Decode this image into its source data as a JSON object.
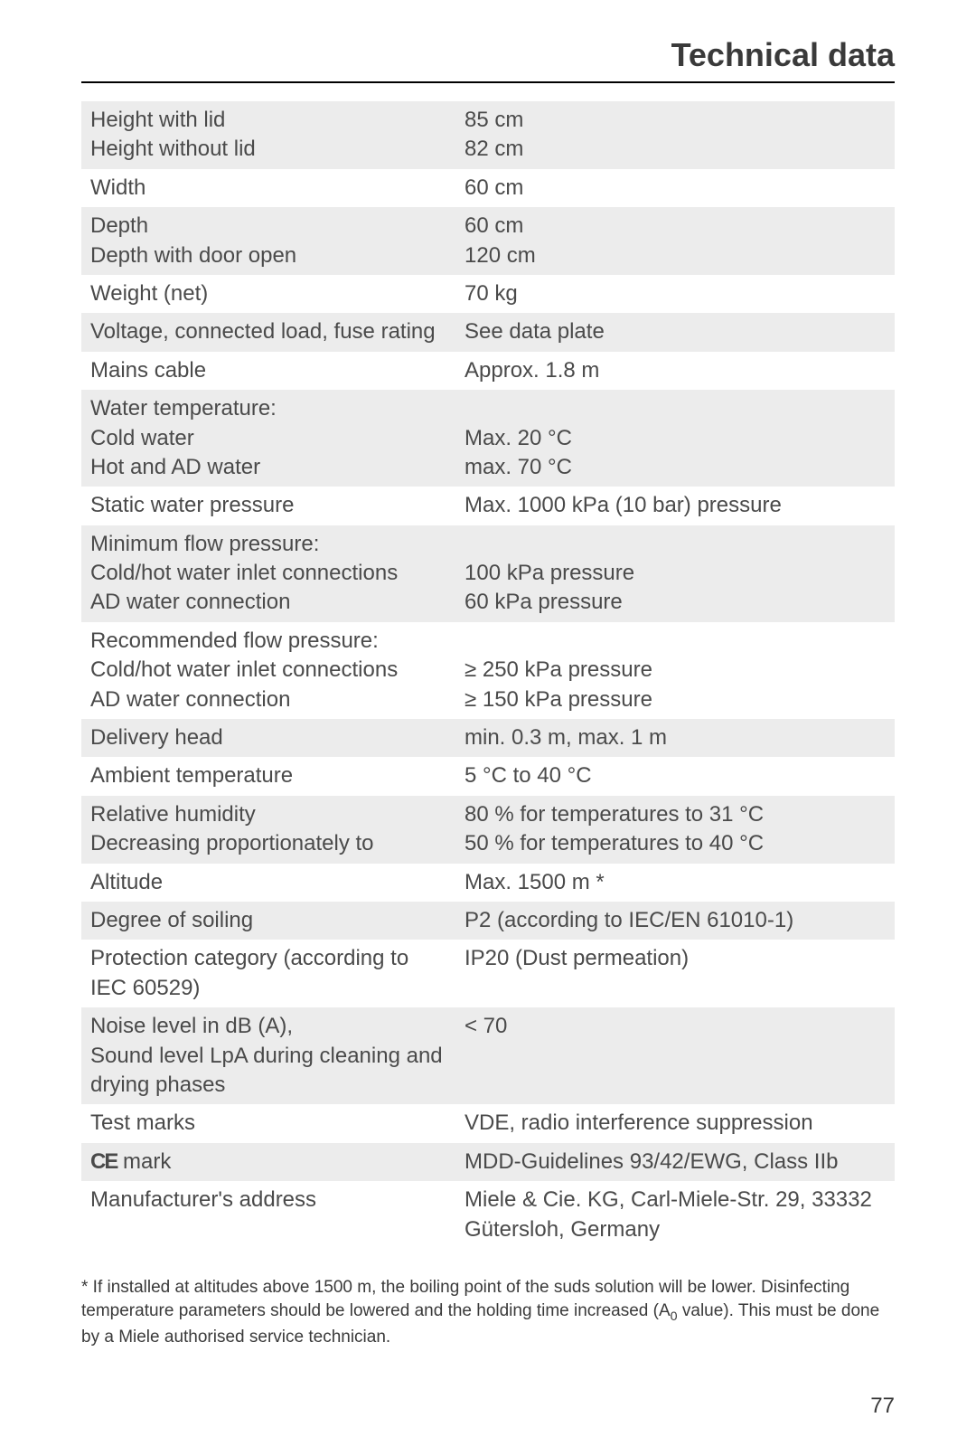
{
  "title": "Technical data",
  "rows": [
    {
      "label": "Height with lid\nHeight without lid",
      "value": "85 cm\n82 cm",
      "shaded": true
    },
    {
      "label": "Width",
      "value": "60 cm",
      "shaded": false
    },
    {
      "label": "Depth\nDepth with door open",
      "value": "60 cm\n120 cm",
      "shaded": true
    },
    {
      "label": "Weight (net)",
      "value": "70 kg",
      "shaded": false
    },
    {
      "label": "Voltage, connected load, fuse rating",
      "value": "See data plate",
      "shaded": true
    },
    {
      "label": "Mains cable",
      "value": "Approx. 1.8 m",
      "shaded": false
    },
    {
      "label": "Water temperature:\nCold water\nHot and AD water",
      "value": "\nMax. 20 °C\nmax. 70 °C",
      "shaded": true
    },
    {
      "label": "Static water pressure",
      "value": "Max. 1000 kPa (10 bar) pressure",
      "shaded": false
    },
    {
      "label": "Minimum flow pressure:\nCold/hot water inlet connections\nAD water connection",
      "value": "\n100 kPa pressure\n60 kPa pressure",
      "shaded": true
    },
    {
      "label": "Recommended flow pressure:\nCold/hot water inlet connections\nAD water connection",
      "value": "\n≥ 250 kPa pressure\n≥ 150 kPa pressure",
      "shaded": false
    },
    {
      "label": "Delivery head",
      "value": "min. 0.3 m, max. 1 m",
      "shaded": true
    },
    {
      "label": "Ambient temperature",
      "value": "5 °C to 40 °C",
      "shaded": false
    },
    {
      "label": "Relative humidity\nDecreasing proportionately to",
      "value": "80 % for temperatures to 31 °C\n50 % for temperatures to 40 °C",
      "shaded": true
    },
    {
      "label": "Altitude",
      "value": "Max. 1500 m *",
      "shaded": false
    },
    {
      "label": "Degree of soiling",
      "value": "P2 (according to IEC/EN 61010-1)",
      "shaded": true
    },
    {
      "label": "Protection category (according to IEC 60529)",
      "value": "IP20 (Dust permeation)",
      "shaded": false
    },
    {
      "label": "Noise level in dB (A),\nSound level LpA during cleaning and drying phases",
      "value": "< 70",
      "shaded": true
    },
    {
      "label": "Test marks",
      "value": "VDE, radio interference suppression",
      "shaded": false
    },
    {
      "label": "__CE__ mark",
      "value": "MDD-Guidelines 93/42/EWG, Class IIb",
      "shaded": true
    },
    {
      "label": "Manufacturer's address",
      "value": "Miele & Cie. KG, Carl-Miele-Str. 29, 33332 Gütersloh, Germany",
      "shaded": false
    }
  ],
  "footnote": "* If installed at altitudes above 1500 m, the boiling point of the suds solution will be lower. Disinfecting temperature parameters should be lowered and the holding time increased (A__SUB0__ value). This must be done by a Miele authorised service technician.",
  "page_number": "77",
  "colors": {
    "shaded_row": "#ececec",
    "text": "#3a3a3a",
    "background": "#ffffff"
  },
  "typography": {
    "title_fontsize": 36,
    "table_fontsize": 24,
    "footnote_fontsize": 19,
    "pagenum_fontsize": 24
  }
}
